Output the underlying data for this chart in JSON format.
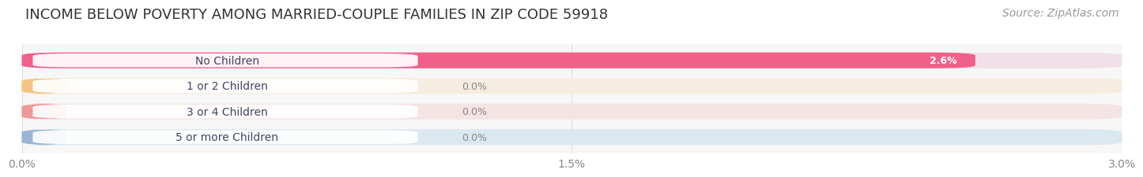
{
  "title": "INCOME BELOW POVERTY AMONG MARRIED-COUPLE FAMILIES IN ZIP CODE 59918",
  "source": "Source: ZipAtlas.com",
  "categories": [
    "No Children",
    "1 or 2 Children",
    "3 or 4 Children",
    "5 or more Children"
  ],
  "values": [
    2.6,
    0.0,
    0.0,
    0.0
  ],
  "bar_colors": [
    "#f0608a",
    "#f5c485",
    "#f09898",
    "#9ab4d4"
  ],
  "bar_bg_colors": [
    "#f0e0e8",
    "#f5ede0",
    "#f5e4e4",
    "#dce8f0"
  ],
  "xlim": [
    0,
    3.0
  ],
  "xticks": [
    0.0,
    1.5,
    3.0
  ],
  "xtick_labels": [
    "0.0%",
    "1.5%",
    "3.0%"
  ],
  "background_color": "#ffffff",
  "plot_bg_color": "#f7f7f7",
  "title_fontsize": 13,
  "source_fontsize": 10,
  "tick_fontsize": 10,
  "label_fontsize": 10,
  "value_fontsize": 9
}
